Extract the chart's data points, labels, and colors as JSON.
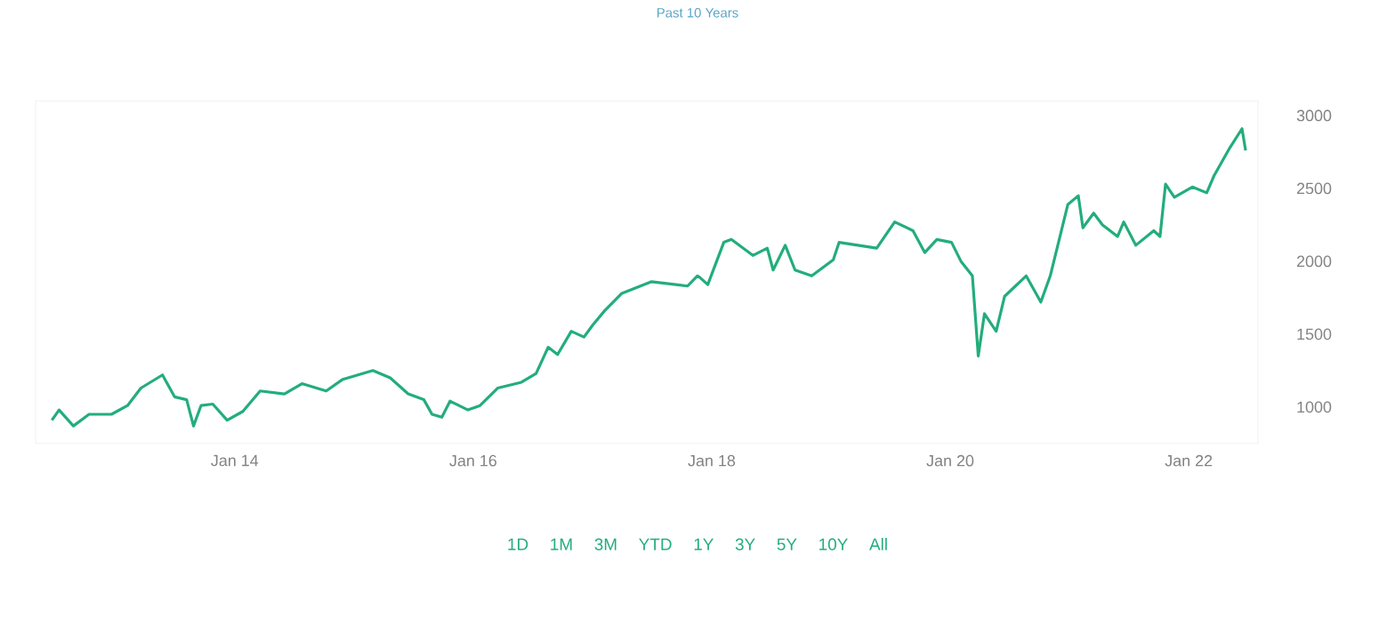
{
  "chart_data": {
    "type": "line",
    "title": "Past 10 Years",
    "x": [
      "2012-06-20",
      "2012-07-12",
      "2012-08-25",
      "2012-10-12",
      "2012-12-20",
      "2013-02-07",
      "2013-03-20",
      "2013-05-25",
      "2013-07-01",
      "2013-08-07",
      "2013-08-28",
      "2013-09-20",
      "2013-10-26",
      "2013-12-09",
      "2014-01-26",
      "2014-03-20",
      "2014-06-02",
      "2014-07-26",
      "2014-10-08",
      "2014-11-28",
      "2015-02-28",
      "2015-04-22",
      "2015-06-16",
      "2015-08-03",
      "2015-08-28",
      "2015-09-27",
      "2015-10-22",
      "2015-12-16",
      "2016-01-22",
      "2016-03-16",
      "2016-05-28",
      "2016-07-12",
      "2016-08-18",
      "2016-09-16",
      "2016-10-28",
      "2016-12-06",
      "2017-01-01",
      "2017-02-07",
      "2017-04-01",
      "2017-07-01",
      "2017-10-19",
      "2017-11-18",
      "2017-11-25",
      "2017-12-20",
      "2018-02-07",
      "2018-03-02",
      "2018-05-07",
      "2018-06-20",
      "2018-07-08",
      "2018-08-14",
      "2018-09-13",
      "2018-11-03",
      "2019-01-08",
      "2019-01-26",
      "2019-05-21",
      "2019-07-15",
      "2019-09-09",
      "2019-10-15",
      "2019-11-21",
      "2020-01-05",
      "2020-02-03",
      "2020-03-09",
      "2020-03-27",
      "2020-04-15",
      "2020-05-21",
      "2020-06-16",
      "2020-08-21",
      "2020-10-05",
      "2020-11-03",
      "2020-12-27",
      "2021-01-28",
      "2021-02-11",
      "2021-03-16",
      "2021-04-12",
      "2021-05-28",
      "2021-06-16",
      "2021-07-23",
      "2021-09-16",
      "2021-10-05",
      "2021-10-22",
      "2021-11-18",
      "2022-01-12",
      "2022-02-25",
      "2022-03-20",
      "2022-05-07",
      "2022-06-13",
      "2022-06-24"
    ],
    "series": [
      {
        "color": "#23ad7c",
        "values": [
          910,
          980,
          870,
          950,
          950,
          1010,
          1130,
          1220,
          1070,
          1050,
          870,
          1010,
          1020,
          910,
          970,
          1110,
          1090,
          1160,
          1110,
          1190,
          1250,
          1200,
          1090,
          1050,
          950,
          930,
          1040,
          980,
          1010,
          1130,
          1170,
          1230,
          1410,
          1360,
          1520,
          1480,
          1560,
          1660,
          1780,
          1860,
          1830,
          1900,
          1890,
          1840,
          2130,
          2150,
          2040,
          2090,
          1940,
          2110,
          1940,
          1900,
          2010,
          2130,
          2090,
          2270,
          2210,
          2060,
          2150,
          2130,
          2000,
          1900,
          1350,
          1640,
          1520,
          1760,
          1900,
          1720,
          1900,
          2390,
          2450,
          2230,
          2330,
          2250,
          2170,
          2270,
          2110,
          2210,
          2170,
          2530,
          2440,
          2510,
          2470,
          2590,
          2780,
          2910,
          2760
        ]
      }
    ],
    "xlim": [
      "2012-05-01",
      "2022-08-01"
    ],
    "ylim": [
      750,
      3100
    ],
    "xticks": [
      {
        "value": "2014-01-01",
        "label": "Jan 14"
      },
      {
        "value": "2016-01-01",
        "label": "Jan 16"
      },
      {
        "value": "2018-01-01",
        "label": "Jan 18"
      },
      {
        "value": "2020-01-01",
        "label": "Jan 20"
      },
      {
        "value": "2022-01-01",
        "label": "Jan 22"
      }
    ],
    "yticks": [
      1000,
      1500,
      2000,
      2500,
      3000
    ],
    "grid": false,
    "marker": "none",
    "line_style": "solid",
    "annotations": [
      "1D",
      "1M",
      "3M",
      "YTD",
      "1Y",
      "3Y",
      "5Y",
      "10Y",
      "All"
    ]
  }
}
